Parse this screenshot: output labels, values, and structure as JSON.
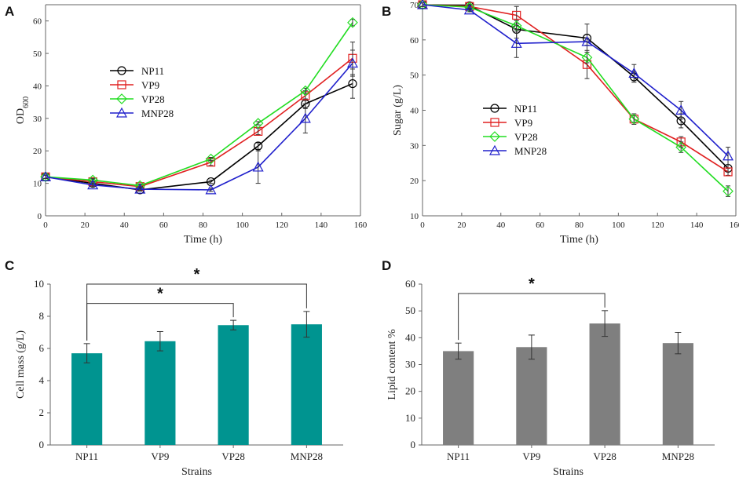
{
  "chart_data": [
    {
      "panel": "A",
      "type": "line",
      "x": [
        0,
        24,
        48,
        84,
        108,
        132,
        156
      ],
      "xlim": [
        0,
        160
      ],
      "xticks": [
        0,
        20,
        40,
        60,
        80,
        100,
        120,
        140,
        160
      ],
      "ylim": [
        0,
        65
      ],
      "yticks": [
        0,
        10,
        20,
        30,
        40,
        50,
        60
      ],
      "xlabel": "Time (h)",
      "ylabel": "OD",
      "ylabel_sub": "600",
      "legend_position": "center-left",
      "series": [
        {
          "name": "NP11",
          "color": "#000000",
          "marker": "circle",
          "values": [
            12,
            10,
            8,
            10.5,
            21.5,
            34.5,
            40.7
          ],
          "errors": [
            0.5,
            0.5,
            0.4,
            0.5,
            1.0,
            1.5,
            4.5
          ]
        },
        {
          "name": "VP9",
          "color": "#e02020",
          "marker": "square",
          "values": [
            12,
            10.5,
            9,
            16.5,
            26,
            37,
            48.5
          ],
          "errors": [
            0.5,
            0.5,
            0.5,
            1.0,
            1.0,
            1.5,
            5.0
          ]
        },
        {
          "name": "VP28",
          "color": "#22dd22",
          "marker": "diamond",
          "values": [
            12,
            11,
            9.3,
            17.5,
            28.5,
            38.5,
            59.5
          ],
          "errors": [
            0.5,
            0.5,
            0.5,
            0.5,
            0.5,
            0.8,
            1.0
          ]
        },
        {
          "name": "MNP28",
          "color": "#2020cc",
          "marker": "triangle",
          "values": [
            12,
            9.5,
            8.2,
            8,
            15,
            30,
            47
          ],
          "errors": [
            0.5,
            0.5,
            0.5,
            0.5,
            5.0,
            4.5,
            4.0
          ]
        }
      ]
    },
    {
      "panel": "B",
      "type": "line",
      "x": [
        0,
        24,
        48,
        84,
        108,
        132,
        156
      ],
      "xlim": [
        0,
        160
      ],
      "xticks": [
        0,
        20,
        40,
        60,
        80,
        100,
        120,
        140,
        160
      ],
      "ylim": [
        10,
        70
      ],
      "yticks": [
        10,
        20,
        30,
        40,
        50,
        60,
        70
      ],
      "xlabel": "Time (h)",
      "ylabel": "Sugar (g/L)",
      "legend_position": "center-right",
      "series": [
        {
          "name": "NP11",
          "color": "#000000",
          "marker": "circle",
          "values": [
            70,
            69.7,
            63,
            60.5,
            49.5,
            37,
            23.5
          ],
          "errors": [
            0.5,
            0.5,
            2.5,
            4.0,
            1.5,
            2.0,
            1.0
          ]
        },
        {
          "name": "VP9",
          "color": "#e02020",
          "marker": "square",
          "values": [
            70,
            69.5,
            67,
            53,
            37.5,
            31,
            22.5
          ],
          "errors": [
            0.5,
            0.5,
            2.5,
            4.0,
            1.5,
            1.5,
            1.0
          ]
        },
        {
          "name": "VP28",
          "color": "#22dd22",
          "marker": "diamond",
          "values": [
            70,
            69.3,
            64,
            55,
            37.5,
            29.5,
            17
          ],
          "errors": [
            0.5,
            0.5,
            1.5,
            1.5,
            1.0,
            1.5,
            1.5
          ]
        },
        {
          "name": "MNP28",
          "color": "#2020cc",
          "marker": "triangle",
          "values": [
            70,
            68.5,
            59,
            59.5,
            50.5,
            40,
            27
          ],
          "errors": [
            0.5,
            0.5,
            4.0,
            1.0,
            2.5,
            2.5,
            2.5
          ]
        }
      ]
    },
    {
      "panel": "C",
      "type": "bar",
      "categories": [
        "NP11",
        "VP9",
        "VP28",
        "MNP28"
      ],
      "values": [
        5.7,
        6.45,
        7.45,
        7.5
      ],
      "errors": [
        0.6,
        0.6,
        0.3,
        0.8
      ],
      "color": "#009490",
      "ylim": [
        0,
        10
      ],
      "yticks": [
        0,
        2,
        4,
        6,
        8,
        10
      ],
      "xlabel": "Strains",
      "ylabel": "Cell mass (g/L)",
      "brackets": [
        {
          "from": 0,
          "to": 2,
          "level": 8.8,
          "label": "*"
        },
        {
          "from": 0,
          "to": 3,
          "level": 10.0,
          "label": "*"
        }
      ]
    },
    {
      "panel": "D",
      "type": "bar",
      "categories": [
        "NP11",
        "VP9",
        "VP28",
        "MNP28"
      ],
      "values": [
        35,
        36.5,
        45.3,
        38
      ],
      "errors": [
        3,
        4.5,
        4.8,
        4
      ],
      "color": "#7f7f7f",
      "ylim": [
        0,
        60
      ],
      "yticks": [
        0,
        10,
        20,
        30,
        40,
        50,
        60
      ],
      "xlabel": "Strains",
      "ylabel": "Lipid content %",
      "brackets": [
        {
          "from": 0,
          "to": 2,
          "level": 56.5,
          "label": "*"
        }
      ]
    }
  ]
}
